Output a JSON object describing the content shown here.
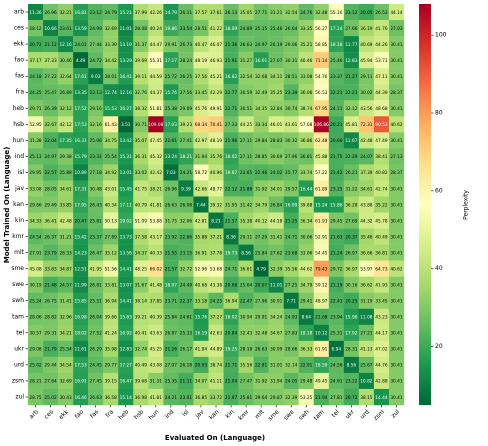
{
  "chart_data": {
    "type": "heatmap",
    "xlabel": "Evaluated On (Language)",
    "ylabel": "Model Trained On (Language)",
    "colorbar_label": "Perplexity",
    "categories": [
      "arb",
      "ces",
      "ekk",
      "fao",
      "fas",
      "fra",
      "heb",
      "hsb",
      "hun",
      "ind",
      "isl",
      "jav",
      "kan",
      "kin",
      "kmr",
      "mlt",
      "sme",
      "swe",
      "swh",
      "tam",
      "tel",
      "ukr",
      "urd",
      "zsm",
      "zul"
    ],
    "rows": [
      "arb",
      "ces",
      "ekk",
      "fao",
      "fas",
      "fra",
      "heb",
      "hsb",
      "hun",
      "ind",
      "isl",
      "jav",
      "kan",
      "kin",
      "kmr",
      "mlt",
      "sme",
      "swe",
      "swh",
      "tam",
      "tel",
      "ukr",
      "urd",
      "zsm",
      "zul"
    ],
    "values": [
      [
        11.26,
        26.96,
        32.21,
        16.81,
        23.12,
        24.79,
        15.21,
        37.99,
        42.26,
        14.79,
        26.11,
        37.57,
        37.61,
        26.13,
        35.05,
        27.71,
        31.21,
        32.54,
        24.76,
        32.48,
        55.16,
        23.12,
        20.05,
        26.53,
        44.14
      ],
      [
        28.12,
        10.66,
        23.61,
        13.59,
        24.99,
        32.69,
        11.01,
        28.08,
        40.24,
        19.86,
        23.54,
        28.51,
        41.22,
        18.09,
        24.89,
        25.15,
        25.46,
        26.64,
        33.35,
        56.27,
        17.14,
        27.66,
        36.19,
        41.76,
        27.03
      ],
      [
        20.72,
        21.12,
        12.16,
        24.01,
        27.44,
        33.39,
        13.19,
        31.37,
        44.47,
        29.91,
        26.73,
        40.47,
        46.07,
        21.36,
        26.63,
        24.97,
        26.19,
        29.06,
        35.21,
        58.85,
        18.18,
        11.77,
        40.69,
        44.26,
        30.41
      ],
      [
        37.17,
        37.33,
        30.46,
        4.49,
        24.72,
        34.42,
        13.29,
        39.69,
        55.31,
        17.17,
        28.24,
        48.19,
        46.93,
        21.91,
        31.27,
        16.61,
        27.07,
        30.31,
        40.46,
        71.14,
        25.46,
        12.83,
        45.94,
        53.71,
        30.41
      ],
      [
        24.18,
        27.22,
        32.64,
        17.61,
        9.03,
        28.01,
        16.41,
        39.11,
        44.59,
        25.72,
        26.25,
        37.56,
        45.21,
        16.82,
        32.54,
        32.68,
        34.11,
        28.51,
        33.08,
        54.76,
        23.37,
        21.27,
        29.11,
        47.11,
        30.41
      ],
      [
        24.25,
        25.47,
        26.89,
        13.35,
        22.13,
        12.74,
        12.16,
        32.76,
        44.37,
        15.76,
        27.56,
        33.45,
        42.29,
        22.77,
        30.59,
        32.49,
        35.25,
        23.39,
        36.06,
        56.53,
        22.21,
        22.21,
        30.02,
        44.39,
        28.37
      ],
      [
        29.71,
        26.39,
        32.12,
        17.52,
        29.16,
        15.53,
        16.27,
        38.32,
        51.81,
        25.38,
        29.09,
        45.76,
        49.91,
        22.71,
        30.51,
        34.35,
        32.84,
        30.74,
        38.74,
        67.95,
        24.11,
        32.12,
        43.56,
        48.68,
        30.41
      ],
      [
        52.95,
        32.67,
        42.12,
        17.53,
        32.16,
        61.43,
        3.51,
        30.71,
        109.08,
        17.03,
        39.23,
        68.34,
        70.41,
        27.33,
        44.25,
        33.34,
        46.01,
        43.61,
        57.08,
        106.86,
        20.21,
        45.81,
        72.31,
        90.53,
        40.62
      ],
      [
        31.28,
        22.04,
        17.35,
        16.31,
        25.06,
        34.75,
        13.42,
        35.07,
        47.45,
        22.61,
        27.41,
        42.97,
        48.19,
        21.96,
        27.11,
        29.84,
        28.83,
        30.32,
        36.86,
        62.48,
        20.66,
        11.67,
        42.48,
        47.49,
        30.41
      ],
      [
        25.13,
        24.97,
        29.38,
        15.79,
        23.31,
        25.54,
        15.31,
        36.31,
        45.32,
        13.24,
        18.21,
        31.94,
        35.76,
        18.02,
        27.11,
        28.85,
        30.69,
        27.96,
        26.81,
        45.88,
        21.75,
        22.29,
        24.07,
        38.41,
        27.13
      ],
      [
        29.95,
        22.57,
        25.88,
        10.89,
        27.18,
        34.92,
        13.01,
        33.02,
        42.42,
        7.03,
        24.21,
        58.72,
        40.96,
        19.67,
        23.65,
        22.46,
        24.02,
        25.77,
        33.74,
        57.22,
        21.42,
        26.21,
        37.39,
        40.82,
        28.37
      ],
      [
        33.08,
        28.05,
        34.61,
        17.31,
        30.48,
        43.01,
        15.45,
        41.75,
        38.21,
        26.96,
        9.39,
        42.66,
        48.77,
        22.12,
        21.88,
        31.92,
        34.01,
        29.57,
        16.44,
        61.89,
        23.25,
        31.22,
        34.61,
        42.74,
        30.41
      ],
      [
        29.66,
        29.49,
        33.85,
        17.95,
        26.43,
        40.34,
        17.11,
        40.79,
        41.81,
        26.63,
        26.08,
        7.44,
        39.32,
        31.95,
        31.42,
        34.79,
        26.84,
        16.99,
        39.88,
        15.24,
        15.86,
        36.28,
        43.88,
        35.22,
        30.41
      ],
      [
        34.33,
        36.41,
        42.48,
        20.47,
        25.81,
        50.13,
        19.02,
        51.09,
        53.88,
        31.75,
        32.06,
        42.81,
        8.21,
        21.57,
        35.38,
        40.12,
        44.18,
        21.25,
        36.34,
        61.93,
        29.45,
        27.69,
        44.32,
        45.78,
        30.41
      ],
      [
        24.54,
        26.37,
        31.21,
        15.42,
        23.37,
        27.89,
        13.73,
        37.58,
        43.17,
        23.92,
        22.66,
        35.88,
        37.21,
        8.36,
        29.11,
        27.29,
        31.41,
        24.71,
        30.66,
        52.91,
        21.63,
        20.37,
        35.46,
        40.49,
        30.41
      ],
      [
        27.91,
        23.79,
        28.33,
        14.23,
        26.47,
        35.12,
        13.56,
        34.37,
        40.33,
        21.55,
        23.15,
        36.91,
        37.78,
        19.73,
        8.56,
        25.84,
        27.62,
        23.68,
        33.06,
        54.45,
        21.24,
        26.97,
        36.66,
        36.81,
        30.41
      ],
      [
        45.08,
        33.83,
        34.87,
        12.51,
        41.95,
        51.56,
        14.41,
        48.25,
        66.02,
        21.57,
        32.72,
        52.96,
        53.68,
        24.71,
        36.61,
        4.79,
        32.39,
        35.56,
        44.62,
        79.43,
        29.72,
        36.97,
        53.97,
        64.73,
        40.62
      ],
      [
        30.19,
        21.48,
        24.57,
        11.99,
        26.81,
        33.81,
        13.07,
        31.67,
        41.48,
        18.07,
        24.49,
        40.68,
        43.38,
        20.68,
        25.64,
        20.07,
        11.01,
        27.25,
        34.79,
        59.12,
        21.19,
        30.16,
        36.62,
        41.93,
        30.41
      ],
      [
        25.24,
        26.75,
        31.41,
        15.85,
        25.51,
        36.94,
        14.41,
        38.14,
        37.85,
        23.71,
        22.37,
        33.18,
        24.25,
        36.94,
        22.47,
        27.96,
        30.91,
        7.71,
        29.41,
        48.97,
        22.43,
        20.25,
        31.19,
        33.45,
        30.41
      ],
      [
        28.06,
        28.82,
        32.96,
        16.98,
        26.04,
        39.66,
        15.83,
        39.21,
        40.39,
        25.84,
        24.61,
        15.76,
        37.27,
        18.02,
        30.94,
        29.91,
        34.24,
        24.93,
        8.64,
        21.68,
        23.94,
        15.96,
        11.08,
        43.23,
        30.41
      ],
      [
        30.57,
        29.31,
        34.21,
        18.02,
        27.52,
        41.24,
        16.92,
        40.41,
        43.63,
        26.87,
        25.33,
        16.19,
        42.63,
        20.84,
        32.43,
        32.48,
        34.67,
        27.83,
        18.18,
        10.12,
        25.31,
        17.92,
        27.21,
        44.17,
        30.41
      ],
      [
        29.08,
        21.79,
        25.54,
        11.61,
        26.29,
        35.98,
        12.83,
        32.74,
        45.25,
        21.26,
        26.17,
        41.84,
        44.89,
        19.25,
        28.18,
        26.63,
        30.99,
        28.66,
        36.33,
        61.91,
        6.94,
        28.31,
        41.13,
        47.02,
        30.41
      ],
      [
        25.02,
        29.44,
        34.54,
        17.53,
        24.45,
        29.77,
        17.27,
        40.49,
        43.08,
        27.07,
        26.18,
        20.93,
        38.74,
        21.71,
        35.56,
        22.81,
        31.01,
        32.14,
        22.91,
        18.59,
        24.56,
        8.56,
        25.67,
        44.76,
        30.41
      ],
      [
        28.21,
        27.64,
        32.69,
        16.91,
        27.45,
        39.15,
        16.47,
        39.68,
        31.31,
        25.35,
        21.11,
        34.07,
        41.11,
        21.04,
        27.47,
        31.92,
        31.94,
        24.05,
        29.48,
        49.45,
        24.91,
        23.22,
        10.82,
        42.88,
        30.41
      ],
      [
        28.75,
        25.02,
        30.43,
        16.46,
        26.63,
        36.58,
        15.14,
        36.98,
        41.81,
        24.21,
        23.01,
        36.85,
        33.72,
        21.97,
        25.81,
        29.64,
        29.87,
        32.39,
        53.25,
        21.94,
        27.81,
        20.72,
        38.15,
        14.44,
        30.41
      ]
    ],
    "zlim": [
      5,
      108
    ],
    "zticks": [
      20,
      40,
      60,
      80,
      100
    ],
    "colormap": [
      "#006837",
      "#1a9850",
      "#66bd63",
      "#a6d96a",
      "#d9ef8b",
      "#ffffbf",
      "#fee08b",
      "#fdae61",
      "#f46d43",
      "#d73027",
      "#a50026"
    ]
  }
}
